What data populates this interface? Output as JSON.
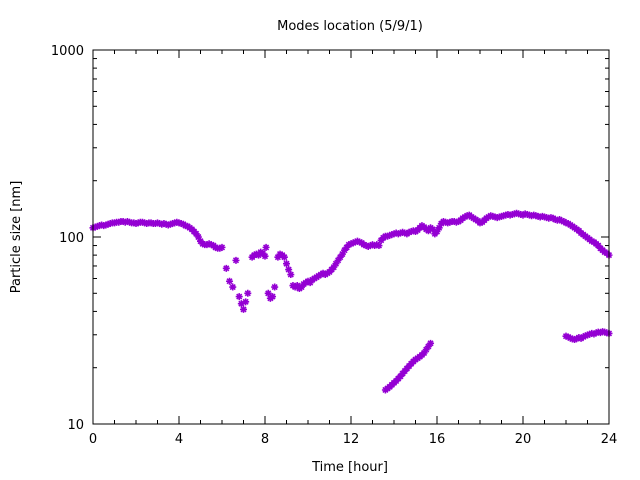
{
  "chart_data": {
    "type": "scatter",
    "title": "Modes location (5/9/1)",
    "xlabel": "Time [hour]",
    "ylabel": "Particle size [nm]",
    "xlim": [
      0,
      24
    ],
    "ylim": [
      10,
      1000
    ],
    "yscale": "log",
    "xticks": [
      0,
      4,
      8,
      12,
      16,
      20,
      24
    ],
    "xtick_labels": [
      "0",
      "4",
      "8",
      "12",
      "16",
      "20",
      "24"
    ],
    "yticks": [
      10,
      100,
      1000
    ],
    "ytick_labels": [
      "10",
      "100",
      "1000"
    ],
    "grid": false,
    "marker_color": "#9400d3",
    "series": [
      {
        "points": [
          [
            0.0,
            112
          ],
          [
            0.1,
            113
          ],
          [
            0.2,
            114
          ],
          [
            0.3,
            115
          ],
          [
            0.4,
            116
          ],
          [
            0.5,
            115
          ],
          [
            0.6,
            116
          ],
          [
            0.7,
            117
          ],
          [
            0.8,
            118
          ],
          [
            0.9,
            119
          ],
          [
            1.0,
            119
          ],
          [
            1.1,
            120
          ],
          [
            1.2,
            120
          ],
          [
            1.3,
            121
          ],
          [
            1.4,
            121
          ],
          [
            1.5,
            120
          ],
          [
            1.6,
            121
          ],
          [
            1.7,
            120
          ],
          [
            1.8,
            119
          ],
          [
            1.9,
            119
          ],
          [
            2.0,
            118
          ],
          [
            2.1,
            119
          ],
          [
            2.2,
            120
          ],
          [
            2.3,
            120
          ],
          [
            2.4,
            119
          ],
          [
            2.5,
            118
          ],
          [
            2.6,
            119
          ],
          [
            2.7,
            119
          ],
          [
            2.8,
            118
          ],
          [
            2.9,
            118
          ],
          [
            3.0,
            119
          ],
          [
            3.1,
            118
          ],
          [
            3.2,
            117
          ],
          [
            3.3,
            118
          ],
          [
            3.4,
            117
          ],
          [
            3.5,
            116
          ],
          [
            3.6,
            117
          ],
          [
            3.7,
            118
          ],
          [
            3.8,
            119
          ],
          [
            3.9,
            120
          ],
          [
            4.0,
            119
          ],
          [
            4.1,
            118
          ],
          [
            4.2,
            117
          ],
          [
            4.3,
            115
          ],
          [
            4.4,
            114
          ],
          [
            4.5,
            112
          ],
          [
            4.6,
            110
          ],
          [
            4.7,
            107
          ],
          [
            4.8,
            104
          ],
          [
            4.9,
            100
          ],
          [
            5.0,
            95
          ],
          [
            5.1,
            92
          ],
          [
            5.2,
            91
          ],
          [
            5.3,
            91
          ],
          [
            5.4,
            92
          ],
          [
            5.5,
            91
          ],
          [
            5.6,
            90
          ],
          [
            5.7,
            88
          ],
          [
            5.8,
            87
          ],
          [
            5.9,
            87
          ],
          [
            6.0,
            88
          ],
          [
            6.2,
            68
          ],
          [
            6.35,
            58
          ],
          [
            6.5,
            54
          ],
          [
            6.65,
            75
          ],
          [
            6.8,
            48
          ],
          [
            6.9,
            44
          ],
          [
            7.0,
            41
          ],
          [
            7.1,
            45
          ],
          [
            7.2,
            50
          ],
          [
            7.4,
            78
          ],
          [
            7.5,
            80
          ],
          [
            7.6,
            81
          ],
          [
            7.7,
            80
          ],
          [
            7.8,
            83
          ],
          [
            7.9,
            82
          ],
          [
            8.0,
            79
          ],
          [
            8.05,
            88
          ],
          [
            8.15,
            50
          ],
          [
            8.25,
            47
          ],
          [
            8.35,
            48
          ],
          [
            8.45,
            54
          ],
          [
            8.6,
            78
          ],
          [
            8.7,
            81
          ],
          [
            8.8,
            80
          ],
          [
            8.9,
            78
          ],
          [
            9.0,
            72
          ],
          [
            9.1,
            67
          ],
          [
            9.2,
            63
          ],
          [
            9.3,
            55
          ],
          [
            9.4,
            54
          ],
          [
            9.5,
            55
          ],
          [
            9.6,
            53
          ],
          [
            9.7,
            54
          ],
          [
            9.8,
            56
          ],
          [
            9.9,
            57
          ],
          [
            10.0,
            58
          ],
          [
            10.1,
            57
          ],
          [
            10.2,
            59
          ],
          [
            10.3,
            60
          ],
          [
            10.4,
            61
          ],
          [
            10.5,
            62
          ],
          [
            10.6,
            63
          ],
          [
            10.7,
            64
          ],
          [
            10.8,
            63
          ],
          [
            10.9,
            64
          ],
          [
            11.0,
            65
          ],
          [
            11.1,
            67
          ],
          [
            11.2,
            69
          ],
          [
            11.3,
            72
          ],
          [
            11.4,
            75
          ],
          [
            11.5,
            78
          ],
          [
            11.6,
            81
          ],
          [
            11.7,
            85
          ],
          [
            11.8,
            88
          ],
          [
            11.9,
            91
          ],
          [
            12.0,
            92
          ],
          [
            12.1,
            93
          ],
          [
            12.2,
            94
          ],
          [
            12.3,
            95
          ],
          [
            12.4,
            94
          ],
          [
            12.5,
            93
          ],
          [
            12.6,
            91
          ],
          [
            12.7,
            90
          ],
          [
            12.8,
            89
          ],
          [
            12.9,
            90
          ],
          [
            13.0,
            91
          ],
          [
            13.1,
            90
          ],
          [
            13.2,
            91
          ],
          [
            13.3,
            90
          ],
          [
            13.4,
            96
          ],
          [
            13.5,
            99
          ],
          [
            13.6,
            101
          ],
          [
            13.7,
            101
          ],
          [
            13.8,
            102
          ],
          [
            13.9,
            103
          ],
          [
            14.0,
            104
          ],
          [
            14.1,
            105
          ],
          [
            14.2,
            104
          ],
          [
            14.3,
            105
          ],
          [
            14.4,
            106
          ],
          [
            14.5,
            105
          ],
          [
            14.6,
            104
          ],
          [
            14.7,
            106
          ],
          [
            14.8,
            107
          ],
          [
            14.9,
            108
          ],
          [
            15.0,
            107
          ],
          [
            15.1,
            109
          ],
          [
            15.2,
            112
          ],
          [
            15.3,
            115
          ],
          [
            15.4,
            113
          ],
          [
            15.5,
            110
          ],
          [
            15.6,
            108
          ],
          [
            15.7,
            112
          ],
          [
            15.8,
            110
          ],
          [
            15.9,
            104
          ],
          [
            16.0,
            107
          ],
          [
            16.1,
            112
          ],
          [
            16.2,
            118
          ],
          [
            16.3,
            121
          ],
          [
            16.4,
            120
          ],
          [
            16.5,
            119
          ],
          [
            16.6,
            120
          ],
          [
            16.7,
            121
          ],
          [
            16.8,
            121
          ],
          [
            16.9,
            120
          ],
          [
            17.0,
            121
          ],
          [
            17.1,
            123
          ],
          [
            17.2,
            126
          ],
          [
            17.3,
            128
          ],
          [
            17.4,
            130
          ],
          [
            17.5,
            131
          ],
          [
            17.6,
            128
          ],
          [
            17.7,
            126
          ],
          [
            17.8,
            124
          ],
          [
            17.9,
            122
          ],
          [
            18.0,
            119
          ],
          [
            18.1,
            120
          ],
          [
            18.2,
            123
          ],
          [
            18.3,
            126
          ],
          [
            18.4,
            128
          ],
          [
            18.5,
            130
          ],
          [
            18.6,
            129
          ],
          [
            18.7,
            128
          ],
          [
            18.8,
            127
          ],
          [
            18.9,
            128
          ],
          [
            19.0,
            129
          ],
          [
            19.1,
            130
          ],
          [
            19.2,
            131
          ],
          [
            19.3,
            132
          ],
          [
            19.4,
            131
          ],
          [
            19.5,
            132
          ],
          [
            19.6,
            133
          ],
          [
            19.7,
            134
          ],
          [
            19.8,
            133
          ],
          [
            19.9,
            132
          ],
          [
            20.0,
            131
          ],
          [
            20.1,
            133
          ],
          [
            20.2,
            132
          ],
          [
            20.3,
            131
          ],
          [
            20.4,
            130
          ],
          [
            20.5,
            131
          ],
          [
            20.6,
            130
          ],
          [
            20.7,
            129
          ],
          [
            20.8,
            128
          ],
          [
            20.9,
            129
          ],
          [
            21.0,
            128
          ],
          [
            21.1,
            127
          ],
          [
            21.2,
            126
          ],
          [
            21.3,
            127
          ],
          [
            21.4,
            126
          ],
          [
            21.5,
            124
          ],
          [
            21.6,
            123
          ],
          [
            21.7,
            124
          ],
          [
            21.8,
            122
          ],
          [
            21.9,
            121
          ],
          [
            22.0,
            119
          ],
          [
            22.1,
            118
          ],
          [
            22.2,
            116
          ],
          [
            22.3,
            114
          ],
          [
            22.4,
            112
          ],
          [
            22.5,
            110
          ],
          [
            22.6,
            108
          ],
          [
            22.7,
            105
          ],
          [
            22.8,
            103
          ],
          [
            22.9,
            101
          ],
          [
            23.0,
            99
          ],
          [
            23.1,
            97
          ],
          [
            23.2,
            95
          ],
          [
            23.3,
            94
          ],
          [
            23.4,
            92
          ],
          [
            23.5,
            90
          ],
          [
            23.6,
            87
          ],
          [
            23.7,
            85
          ],
          [
            23.8,
            83
          ],
          [
            23.9,
            82
          ],
          [
            24.0,
            80
          ],
          [
            13.6,
            15.2
          ],
          [
            13.7,
            15.5
          ],
          [
            13.8,
            15.8
          ],
          [
            13.9,
            16.2
          ],
          [
            14.0,
            16.6
          ],
          [
            14.1,
            17.0
          ],
          [
            14.2,
            17.5
          ],
          [
            14.3,
            18.0
          ],
          [
            14.4,
            18.6
          ],
          [
            14.5,
            19.2
          ],
          [
            14.6,
            19.8
          ],
          [
            14.7,
            20.4
          ],
          [
            14.8,
            21.0
          ],
          [
            14.9,
            21.6
          ],
          [
            15.0,
            22.1
          ],
          [
            15.1,
            22.5
          ],
          [
            15.2,
            22.9
          ],
          [
            15.3,
            23.4
          ],
          [
            15.4,
            24.0
          ],
          [
            15.5,
            25.0
          ],
          [
            15.6,
            26.0
          ],
          [
            15.7,
            27.0
          ],
          [
            22.0,
            29.5
          ],
          [
            22.1,
            29.2
          ],
          [
            22.2,
            28.8
          ],
          [
            22.3,
            28.5
          ],
          [
            22.4,
            28.3
          ],
          [
            22.5,
            28.6
          ],
          [
            22.6,
            29.0
          ],
          [
            22.7,
            28.7
          ],
          [
            22.8,
            29.2
          ],
          [
            22.9,
            29.6
          ],
          [
            23.0,
            29.9
          ],
          [
            23.1,
            30.2
          ],
          [
            23.2,
            30.5
          ],
          [
            23.3,
            30.3
          ],
          [
            23.4,
            30.7
          ],
          [
            23.5,
            31.0
          ],
          [
            23.6,
            30.8
          ],
          [
            23.7,
            31.2
          ],
          [
            23.8,
            31.0
          ],
          [
            23.9,
            30.7
          ],
          [
            24.0,
            30.5
          ]
        ]
      }
    ]
  }
}
